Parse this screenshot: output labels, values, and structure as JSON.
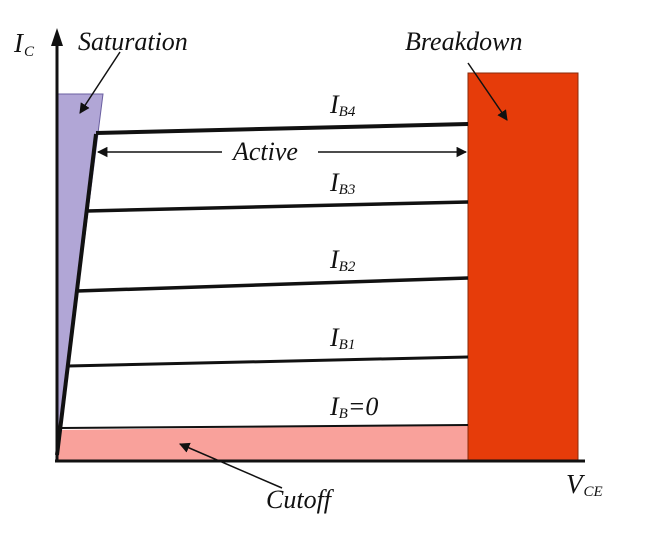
{
  "axes": {
    "y_label_main": "I",
    "y_label_sub": "C",
    "x_label_main": "V",
    "x_label_sub": "CE"
  },
  "regions": {
    "saturation": "Saturation",
    "breakdown": "Breakdown",
    "active": "Active",
    "cutoff": "Cutoff"
  },
  "curves": [
    {
      "main": "I",
      "sub": "B4"
    },
    {
      "main": "I",
      "sub": "B3"
    },
    {
      "main": "I",
      "sub": "B2"
    },
    {
      "main": "I",
      "sub": "B1"
    },
    {
      "main": "I",
      "sub": "B",
      "suffix": "=0"
    }
  ],
  "colors": {
    "saturation": "#b1a6d6",
    "breakdown": "#e63c0a",
    "cutoff": "#f9a19b",
    "ink": "#111111"
  }
}
